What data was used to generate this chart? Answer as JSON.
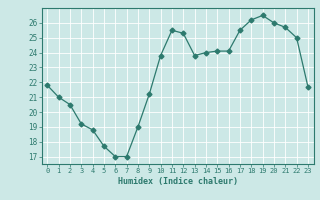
{
  "x": [
    0,
    1,
    2,
    3,
    4,
    5,
    6,
    7,
    8,
    9,
    10,
    11,
    12,
    13,
    14,
    15,
    16,
    17,
    18,
    19,
    20,
    21,
    22,
    23
  ],
  "y": [
    21.8,
    21.0,
    20.5,
    19.2,
    18.8,
    17.7,
    17.0,
    17.0,
    19.0,
    21.2,
    23.8,
    25.5,
    25.3,
    23.8,
    24.0,
    24.1,
    24.1,
    25.5,
    26.2,
    26.5,
    26.0,
    25.7,
    25.0,
    21.7
  ],
  "xlabel": "Humidex (Indice chaleur)",
  "xlim": [
    -0.5,
    23.5
  ],
  "ylim": [
    16.5,
    27.0
  ],
  "yticks": [
    17,
    18,
    19,
    20,
    21,
    22,
    23,
    24,
    25,
    26
  ],
  "xticks": [
    0,
    1,
    2,
    3,
    4,
    5,
    6,
    7,
    8,
    9,
    10,
    11,
    12,
    13,
    14,
    15,
    16,
    17,
    18,
    19,
    20,
    21,
    22,
    23
  ],
  "line_color": "#2d7a6e",
  "marker": "D",
  "markersize": 2.5,
  "background_color": "#cce8e6",
  "grid_color": "#ffffff",
  "text_color": "#2d7a6e",
  "spine_color": "#2d7a6e"
}
